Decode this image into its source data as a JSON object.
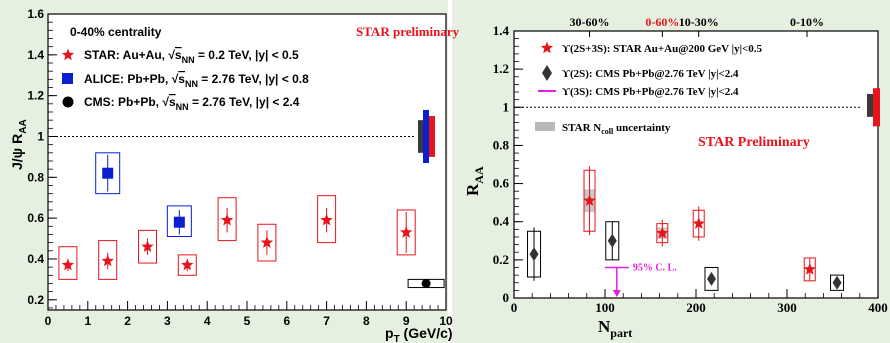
{
  "chart_data": [
    {
      "type": "scatter",
      "xlabel": "p_T (GeV/c)",
      "ylabel": "J/ψ R_AA",
      "xlim": [
        0,
        10
      ],
      "ylim": [
        0.15,
        1.6
      ],
      "x_ticks": [
        0,
        1,
        2,
        3,
        4,
        5,
        6,
        7,
        8,
        9,
        10
      ],
      "y_ticks": [
        0.2,
        0.4,
        0.6,
        0.8,
        1.0,
        1.2,
        1.4,
        1.6
      ],
      "y_tick_labels": [
        "0.2",
        "0.4",
        "0.6",
        "0.8",
        "1",
        "1.2",
        "1.4",
        "1.6"
      ],
      "annotation_centrality": "0-40% centrality",
      "annotation_preliminary": "STAR preliminary",
      "reference_line": 1.0,
      "legend": [
        {
          "marker": "red-star",
          "label": "STAR:  Au+Au,",
          "sqrt": "s",
          "sub": "NN",
          "rest": " = 0.2 TeV,  |y| < 0.5"
        },
        {
          "marker": "blue-square",
          "label": "ALICE: Pb+Pb,",
          "sqrt": "s",
          "sub": "NN",
          "rest": " = 2.76 TeV, |y| < 0.8"
        },
        {
          "marker": "black-circle",
          "label": "CMS:   Pb+Pb,",
          "sqrt": "s",
          "sub": "NN",
          "rest": " = 2.76 TeV, |y| < 2.4"
        }
      ],
      "series": [
        {
          "name": "STAR",
          "color": "#e8141c",
          "x": [
            0.5,
            1.5,
            2.5,
            3.5,
            4.5,
            5.5,
            7.0,
            9.0
          ],
          "y": [
            0.37,
            0.39,
            0.46,
            0.37,
            0.59,
            0.48,
            0.59,
            0.53
          ],
          "err_lo": [
            0.03,
            0.04,
            0.04,
            0.03,
            0.06,
            0.06,
            0.06,
            0.1
          ],
          "err_hi": [
            0.03,
            0.04,
            0.04,
            0.03,
            0.06,
            0.06,
            0.06,
            0.1
          ],
          "sys_lo": [
            0.07,
            0.09,
            0.08,
            0.05,
            0.1,
            0.09,
            0.11,
            0.11
          ],
          "sys_hi": [
            0.09,
            0.1,
            0.08,
            0.05,
            0.11,
            0.09,
            0.12,
            0.11
          ]
        },
        {
          "name": "ALICE",
          "color": "#0b1fd1",
          "x": [
            1.5,
            3.3
          ],
          "y": [
            0.82,
            0.58
          ],
          "err_lo": [
            0.09,
            0.06
          ],
          "err_hi": [
            0.09,
            0.06
          ],
          "sys_lo": [
            0.1,
            0.07
          ],
          "sys_hi": [
            0.1,
            0.08
          ]
        },
        {
          "name": "CMS",
          "color": "#000000",
          "x": [
            9.5
          ],
          "y": [
            0.28
          ],
          "err_lo": [
            0.01
          ],
          "err_hi": [
            0.01
          ],
          "sys_lo": [
            0.02
          ],
          "sys_hi": [
            0.02
          ]
        }
      ],
      "global_uncertainty_bars": [
        {
          "color": "#3a3a3a",
          "lo": 0.92,
          "hi": 1.08
        },
        {
          "color": "#0b1fd1",
          "lo": 0.87,
          "hi": 1.13
        },
        {
          "color": "#e8141c",
          "lo": 0.9,
          "hi": 1.1
        }
      ]
    },
    {
      "type": "scatter",
      "xlabel": "N_part",
      "ylabel": "R_AA",
      "xlim": [
        0,
        400
      ],
      "ylim": [
        0,
        1.4
      ],
      "x_ticks": [
        0,
        100,
        200,
        300,
        400
      ],
      "y_ticks": [
        0,
        0.2,
        0.4,
        0.6,
        0.8,
        1.0,
        1.2,
        1.4
      ],
      "y_tick_labels": [
        "0",
        "0.2",
        "0.4",
        "0.6",
        "0.8",
        "1",
        "1.2",
        "1.4"
      ],
      "top_labels": [
        {
          "text": "30-60%",
          "x": 83,
          "color": "#000000"
        },
        {
          "text": "0-60%",
          "x": 163,
          "color": "#e8141c"
        },
        {
          "text": "10-30%",
          "x": 203,
          "color": "#000000"
        },
        {
          "text": "0-10%",
          "x": 322,
          "color": "#000000"
        }
      ],
      "annotation_preliminary": "STAR Preliminary",
      "annotation_ncoll": "STAR N",
      "annotation_ncoll_sub": "coll",
      "annotation_ncoll_rest": " uncertainty",
      "annotation_cl": "95% C. L.",
      "reference_line": 1.0,
      "legend": [
        {
          "marker": "red-star",
          "text": "ϒ(2S+3S): STAR Au+Au@200 GeV  |y|<0.5"
        },
        {
          "marker": "black-diamond",
          "text": "ϒ(2S): CMS Pb+Pb@2.76 TeV  |y|<2.4"
        },
        {
          "marker": "magenta-line",
          "text": "ϒ(3S): CMS Pb+Pb@2.76 TeV  |y|<2.4"
        }
      ],
      "series": [
        {
          "name": "STAR",
          "color": "#e8141c",
          "x": [
            83,
            163,
            203,
            325
          ],
          "y": [
            0.51,
            0.34,
            0.39,
            0.15
          ],
          "err_lo": [
            0.18,
            0.07,
            0.09,
            0.06
          ],
          "err_hi": [
            0.18,
            0.07,
            0.09,
            0.06
          ],
          "sys_lo": [
            0.16,
            0.05,
            0.07,
            0.06
          ],
          "sys_hi": [
            0.16,
            0.05,
            0.07,
            0.06
          ],
          "ncoll_lo": [
            0.06,
            0.03,
            0,
            0
          ],
          "ncoll_hi": [
            0.06,
            0.03,
            0,
            0
          ]
        },
        {
          "name": "CMS",
          "color": "#000000",
          "x": [
            22,
            108,
            217,
            355
          ],
          "y": [
            0.23,
            0.3,
            0.1,
            0.08
          ],
          "err_lo": [
            0.14,
            0.1,
            0.03,
            0.03
          ],
          "err_hi": [
            0.14,
            0.1,
            0.03,
            0.03
          ],
          "sys_lo": [
            0.12,
            0.1,
            0.06,
            0.04
          ],
          "sys_hi": [
            0.12,
            0.1,
            0.06,
            0.04
          ]
        }
      ],
      "cms_3s_upper_limit": {
        "x": 113,
        "y": 0.16,
        "color": "#e020e0"
      },
      "global_uncertainty_bars": [
        {
          "color": "#3a3a3a",
          "lo": 0.95,
          "hi": 1.07
        },
        {
          "color": "#e8141c",
          "lo": 0.9,
          "hi": 1.1
        }
      ]
    }
  ]
}
